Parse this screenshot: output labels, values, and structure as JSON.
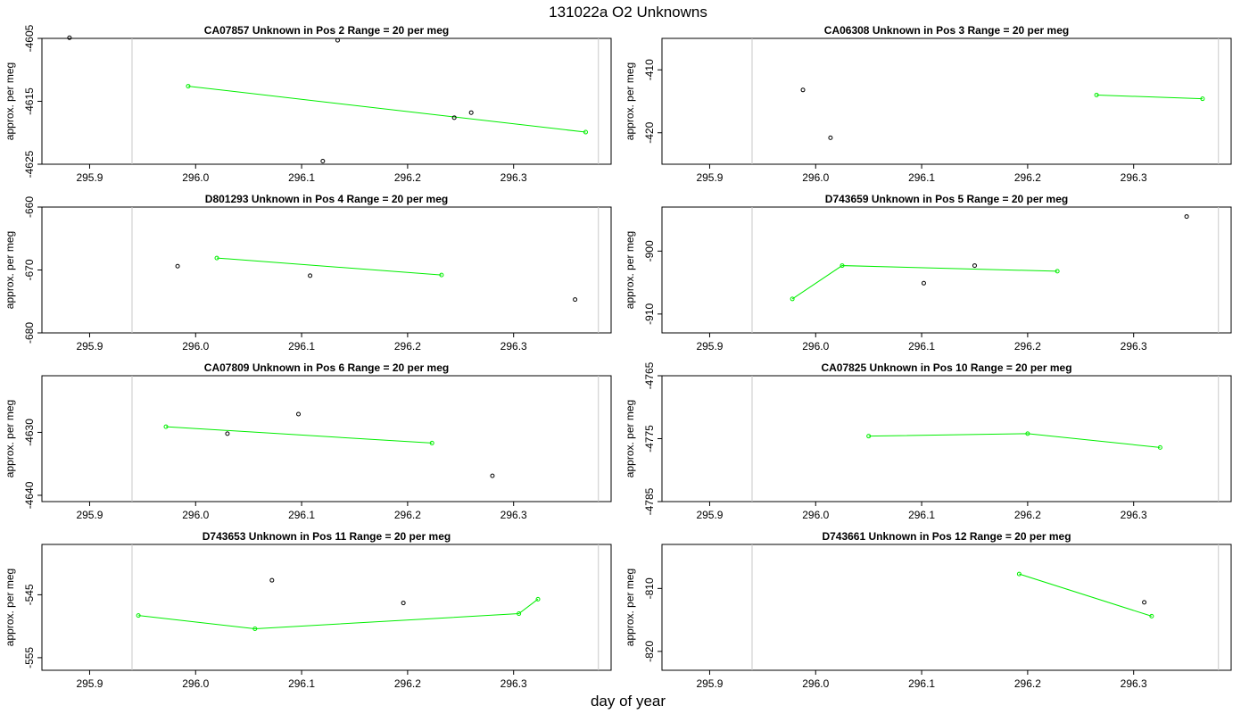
{
  "page": {
    "title": "131022a  O2 Unknowns",
    "xlabel": "day of year"
  },
  "colors": {
    "line": "#00ee00",
    "points": "#000000",
    "vline": "#c8c8c8",
    "frame": "#000000"
  },
  "chart_data": [
    {
      "type": "scatter",
      "title": "CA07857    Unknown in Pos 2          Range = 20 per meg",
      "ylabel": "approx. per meg",
      "xlim": [
        295.855,
        296.392
      ],
      "ylim": [
        -4625,
        -4605
      ],
      "yticks": [
        -4625,
        -4615,
        -4605
      ],
      "xticks": [
        295.9,
        296.0,
        296.1,
        296.2,
        296.3
      ],
      "vlines": [
        295.94,
        296.38
      ],
      "series": [
        {
          "style": "line",
          "x": [
            295.993,
            296.368
          ],
          "y": [
            -4612.6,
            -4619.9
          ]
        },
        {
          "style": "points",
          "x": [
            295.881,
            296.134,
            296.244,
            296.26,
            296.12
          ],
          "y": [
            -4604.9,
            -4605.3,
            -4617.6,
            -4616.8,
            -4624.5
          ]
        }
      ]
    },
    {
      "type": "scatter",
      "title": "CA06308    Unknown in Pos 3          Range = 20 per meg",
      "ylabel": "approx. per meg",
      "xlim": [
        295.855,
        296.392
      ],
      "ylim": [
        -425,
        -405
      ],
      "yticks": [
        -420,
        -410
      ],
      "xticks": [
        295.9,
        296.0,
        296.1,
        296.2,
        296.3
      ],
      "vlines": [
        295.94,
        296.38
      ],
      "series": [
        {
          "style": "line",
          "x": [
            296.265,
            296.365
          ],
          "y": [
            -414.0,
            -414.6
          ]
        },
        {
          "style": "points",
          "x": [
            295.988,
            296.014
          ],
          "y": [
            -413.2,
            -420.8
          ]
        }
      ]
    },
    {
      "type": "scatter",
      "title": "D801293    Unknown in Pos 4          Range = 20 per meg",
      "ylabel": "approx. per meg",
      "xlim": [
        295.855,
        296.392
      ],
      "ylim": [
        -680,
        -660
      ],
      "yticks": [
        -680,
        -670,
        -660
      ],
      "xticks": [
        295.9,
        296.0,
        296.1,
        296.2,
        296.3
      ],
      "vlines": [
        295.94,
        296.38
      ],
      "series": [
        {
          "style": "line",
          "x": [
            296.02,
            296.232
          ],
          "y": [
            -668.1,
            -670.8
          ]
        },
        {
          "style": "points",
          "x": [
            295.983,
            296.108,
            296.358
          ],
          "y": [
            -669.4,
            -670.9,
            -674.7
          ]
        }
      ]
    },
    {
      "type": "scatter",
      "title": "D743659    Unknown in Pos 5          Range = 20 per meg",
      "ylabel": "approx. per meg",
      "xlim": [
        295.855,
        296.392
      ],
      "ylim": [
        -913,
        -893
      ],
      "yticks": [
        -910,
        -900
      ],
      "xticks": [
        295.9,
        296.0,
        296.1,
        296.2,
        296.3
      ],
      "vlines": [
        295.94,
        296.38
      ],
      "series": [
        {
          "style": "line",
          "x": [
            295.978,
            296.025,
            296.228
          ],
          "y": [
            -907.6,
            -902.3,
            -903.2
          ]
        },
        {
          "style": "points",
          "x": [
            296.102,
            296.15,
            296.35
          ],
          "y": [
            -905.1,
            -902.3,
            -894.5
          ]
        }
      ]
    },
    {
      "type": "scatter",
      "title": "CA07809    Unknown in Pos 6          Range = 20 per meg",
      "ylabel": "approx. per meg",
      "xlim": [
        295.855,
        296.392
      ],
      "ylim": [
        -4641,
        -4621
      ],
      "yticks": [
        -4640,
        -4630
      ],
      "xticks": [
        295.9,
        296.0,
        296.1,
        296.2,
        296.3
      ],
      "vlines": [
        295.94,
        296.38
      ],
      "series": [
        {
          "style": "line",
          "x": [
            295.972,
            296.223
          ],
          "y": [
            -4629.1,
            -4631.7
          ]
        },
        {
          "style": "points",
          "x": [
            296.03,
            296.097,
            296.28
          ],
          "y": [
            -4630.2,
            -4627.1,
            -4636.9
          ]
        }
      ]
    },
    {
      "type": "scatter",
      "title": "CA07825    Unknown in Pos 10          Range = 20 per meg",
      "ylabel": "approx. per meg",
      "xlim": [
        295.855,
        296.392
      ],
      "ylim": [
        -4785,
        -4765
      ],
      "yticks": [
        -4785,
        -4775,
        -4765
      ],
      "xticks": [
        295.9,
        296.0,
        296.1,
        296.2,
        296.3
      ],
      "vlines": [
        295.94,
        296.38
      ],
      "series": [
        {
          "style": "line",
          "x": [
            296.05,
            296.2,
            296.325
          ],
          "y": [
            -4774.6,
            -4774.2,
            -4776.4
          ]
        },
        {
          "style": "points",
          "x": [],
          "y": []
        }
      ]
    },
    {
      "type": "scatter",
      "title": "D743653    Unknown in Pos 11          Range = 20 per meg",
      "ylabel": "approx. per meg",
      "xlim": [
        295.855,
        296.392
      ],
      "ylim": [
        -557,
        -537
      ],
      "yticks": [
        -555,
        -545
      ],
      "xticks": [
        295.9,
        296.0,
        296.1,
        296.2,
        296.3
      ],
      "vlines": [
        295.94,
        296.38
      ],
      "series": [
        {
          "style": "line",
          "x": [
            295.946,
            296.056,
            296.305,
            296.323
          ],
          "y": [
            -548.3,
            -550.4,
            -548.0,
            -545.7
          ]
        },
        {
          "style": "points",
          "x": [
            296.072,
            296.196
          ],
          "y": [
            -542.7,
            -546.3
          ]
        }
      ]
    },
    {
      "type": "scatter",
      "title": "D743661    Unknown in Pos 12          Range = 20 per meg",
      "ylabel": "approx. per meg",
      "xlim": [
        295.855,
        296.392
      ],
      "ylim": [
        -823,
        -803
      ],
      "yticks": [
        -820,
        -810
      ],
      "xticks": [
        295.9,
        296.0,
        296.1,
        296.2,
        296.3
      ],
      "vlines": [
        295.94,
        296.38
      ],
      "series": [
        {
          "style": "line",
          "x": [
            296.192,
            296.317
          ],
          "y": [
            -807.7,
            -814.4
          ]
        },
        {
          "style": "points",
          "x": [
            296.31
          ],
          "y": [
            -812.2
          ]
        }
      ]
    }
  ]
}
